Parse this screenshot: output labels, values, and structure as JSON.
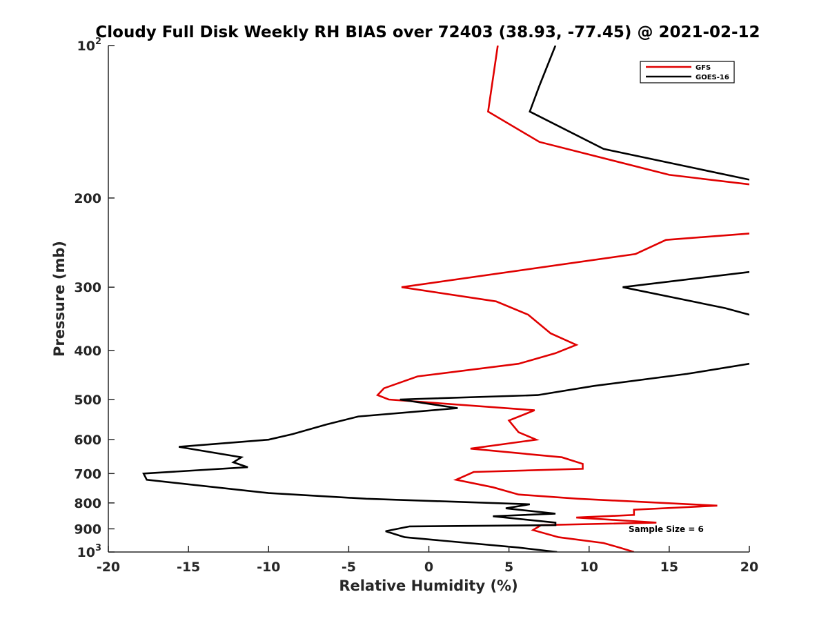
{
  "chart_data": {
    "type": "line",
    "title": "Cloudy Full Disk Weekly RH BIAS over 72403 (38.93, -77.45) @ 2021-02-12",
    "xlabel": "Relative Humidity (%)",
    "ylabel": "Pressure (mb)",
    "xlim": [
      -20,
      20
    ],
    "ylim": [
      100,
      1000
    ],
    "yscale": "log",
    "y_reversed": true,
    "x_ticks": [
      "-20",
      "-15",
      "-10",
      "-5",
      "0",
      "5",
      "10",
      "15",
      "20"
    ],
    "y_ticks": [
      {
        "value": 100,
        "label": "10",
        "sup": "2"
      },
      {
        "value": 200,
        "label": "200",
        "sup": ""
      },
      {
        "value": 300,
        "label": "300",
        "sup": ""
      },
      {
        "value": 400,
        "label": "400",
        "sup": ""
      },
      {
        "value": 500,
        "label": "500",
        "sup": ""
      },
      {
        "value": 600,
        "label": "600",
        "sup": ""
      },
      {
        "value": 700,
        "label": "700",
        "sup": ""
      },
      {
        "value": 800,
        "label": "800",
        "sup": ""
      },
      {
        "value": 900,
        "label": "900",
        "sup": ""
      },
      {
        "value": 1000,
        "label": "10",
        "sup": "3"
      }
    ],
    "grid": false,
    "legend_position": "top-right",
    "annotation": "Sample Size = 6",
    "series": [
      {
        "name": "GFS",
        "color": "#e00000",
        "points": [
          [
            4.3,
            100
          ],
          [
            3.7,
            135
          ],
          [
            6.9,
            155
          ],
          [
            15.0,
            180
          ],
          [
            20.0,
            188
          ],
          [
            null,
            null
          ],
          [
            20.0,
            235
          ],
          [
            14.8,
            242
          ],
          [
            12.9,
            258
          ],
          [
            -1.7,
            300
          ],
          [
            4.2,
            320
          ],
          [
            6.2,
            340
          ],
          [
            7.6,
            370
          ],
          [
            9.2,
            390
          ],
          [
            7.9,
            405
          ],
          [
            5.6,
            425
          ],
          [
            -0.7,
            450
          ],
          [
            -2.8,
            475
          ],
          [
            -3.2,
            490
          ],
          [
            -2.5,
            500
          ],
          [
            6.6,
            525
          ],
          [
            5.0,
            550
          ],
          [
            5.6,
            580
          ],
          [
            6.7,
            600
          ],
          [
            2.6,
            625
          ],
          [
            8.3,
            650
          ],
          [
            9.6,
            670
          ],
          [
            9.6,
            685
          ],
          [
            2.8,
            695
          ],
          [
            1.7,
            720
          ],
          [
            4.0,
            745
          ],
          [
            5.6,
            770
          ],
          [
            9.3,
            785
          ],
          [
            18.0,
            810
          ],
          [
            12.8,
            825
          ],
          [
            12.8,
            845
          ],
          [
            9.2,
            855
          ],
          [
            14.2,
            875
          ],
          [
            7.0,
            885
          ],
          [
            6.5,
            905
          ],
          [
            8.1,
            935
          ],
          [
            10.9,
            960
          ],
          [
            11.9,
            980
          ],
          [
            12.8,
            1000
          ]
        ]
      },
      {
        "name": "GOES-16",
        "color": "#000000",
        "points": [
          [
            7.9,
            100
          ],
          [
            6.9,
            120
          ],
          [
            6.3,
            135
          ],
          [
            10.9,
            160
          ],
          [
            20.0,
            184
          ],
          [
            null,
            null
          ],
          [
            20.0,
            280
          ],
          [
            12.1,
            300
          ],
          [
            18.5,
            330
          ],
          [
            20.0,
            340
          ],
          [
            null,
            null
          ],
          [
            20.0,
            425
          ],
          [
            16.1,
            445
          ],
          [
            10.3,
            470
          ],
          [
            6.8,
            490
          ],
          [
            -1.8,
            500
          ],
          [
            1.8,
            520
          ],
          [
            -4.4,
            540
          ],
          [
            -6.4,
            560
          ],
          [
            -8.5,
            585
          ],
          [
            -10.0,
            600
          ],
          [
            -15.6,
            620
          ],
          [
            -11.7,
            650
          ],
          [
            -12.2,
            665
          ],
          [
            -11.3,
            680
          ],
          [
            -17.8,
            700
          ],
          [
            -17.6,
            720
          ],
          [
            -10.0,
            765
          ],
          [
            -3.9,
            785
          ],
          [
            6.3,
            805
          ],
          [
            4.8,
            820
          ],
          [
            7.9,
            840
          ],
          [
            4.0,
            850
          ],
          [
            7.9,
            875
          ],
          [
            7.9,
            885
          ],
          [
            -1.2,
            890
          ],
          [
            -2.7,
            910
          ],
          [
            -1.5,
            935
          ],
          [
            5.6,
            980
          ],
          [
            8.0,
            1000
          ]
        ]
      }
    ]
  }
}
